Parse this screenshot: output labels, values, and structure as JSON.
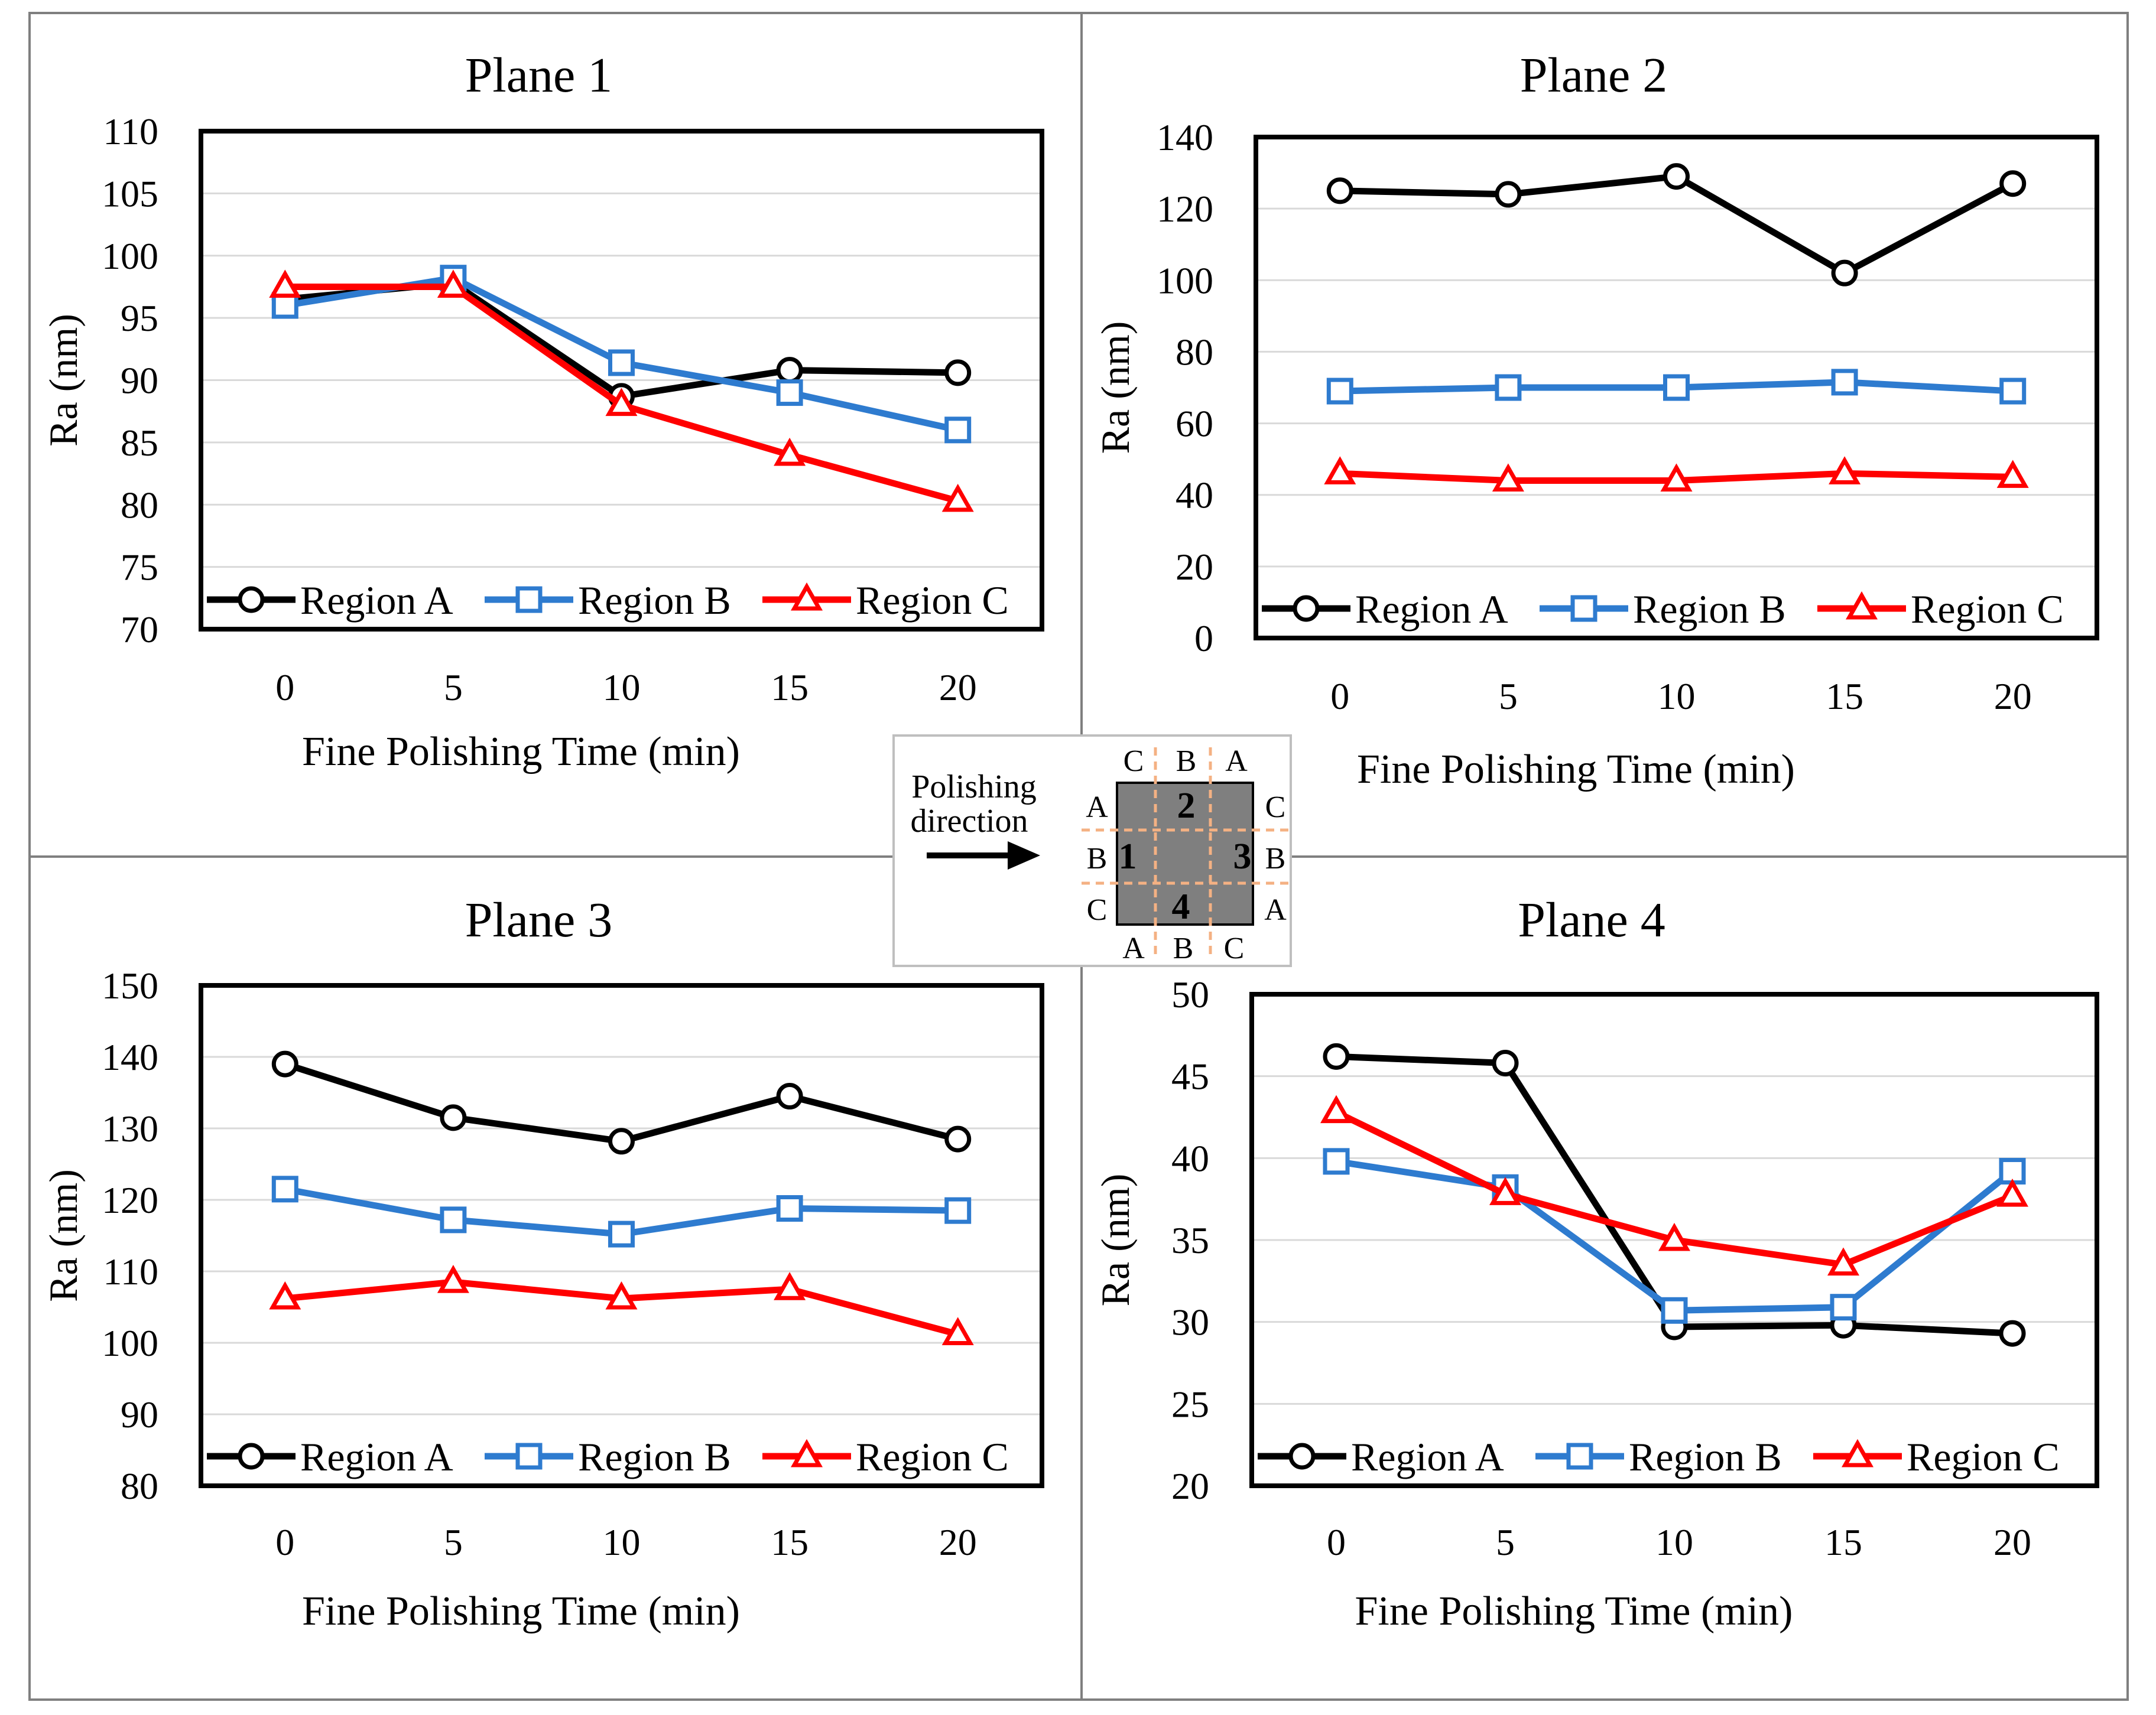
{
  "colors": {
    "region_a": "#000000",
    "region_b": "#2e7bcf",
    "region_c": "#ff0000",
    "grid": "#d9d9d9",
    "panel_border": "#7f7f7f",
    "sample_fill": "#7f7f7f",
    "sample_number": "#ffc000",
    "sample_dash": "#f4b183"
  },
  "chart_data": [
    {
      "type": "line",
      "title": "Plane 1",
      "xlabel": "Fine Polishing Time (min)",
      "ylabel": "Ra (nm)",
      "categories": [
        "0",
        "5",
        "10",
        "15",
        "20"
      ],
      "ylim": [
        70,
        110
      ],
      "yticks": [
        70,
        75,
        80,
        85,
        90,
        95,
        100,
        105,
        110
      ],
      "legend_position": "bottom-inside",
      "series": [
        {
          "name": "Region A",
          "marker": "circle",
          "values": [
            96.5,
            97.8,
            88.7,
            90.8,
            90.6
          ]
        },
        {
          "name": "Region B",
          "marker": "square",
          "values": [
            96.0,
            98.2,
            91.4,
            89.0,
            86.0
          ]
        },
        {
          "name": "Region C",
          "marker": "triangle",
          "values": [
            97.5,
            97.5,
            88.0,
            84.0,
            80.3
          ]
        }
      ]
    },
    {
      "type": "line",
      "title": "Plane 2",
      "xlabel": "Fine Polishing Time (min)",
      "ylabel": "Ra (nm)",
      "categories": [
        "0",
        "5",
        "10",
        "15",
        "20"
      ],
      "ylim": [
        0,
        140
      ],
      "yticks": [
        0,
        20,
        40,
        60,
        80,
        100,
        120,
        140
      ],
      "legend_position": "bottom-inside",
      "series": [
        {
          "name": "Region A",
          "marker": "circle",
          "values": [
            125,
            124,
            129,
            102,
            127
          ]
        },
        {
          "name": "Region B",
          "marker": "square",
          "values": [
            69,
            70,
            70,
            71.5,
            69
          ]
        },
        {
          "name": "Region C",
          "marker": "triangle",
          "values": [
            46,
            44,
            44,
            46,
            45
          ]
        }
      ]
    },
    {
      "type": "line",
      "title": "Plane 3",
      "xlabel": "Fine Polishing Time (min)",
      "ylabel": "Ra (nm)",
      "categories": [
        "0",
        "5",
        "10",
        "15",
        "20"
      ],
      "ylim": [
        80,
        150
      ],
      "yticks": [
        80,
        90,
        100,
        110,
        120,
        130,
        140,
        150
      ],
      "legend_position": "bottom-inside",
      "series": [
        {
          "name": "Region A",
          "marker": "circle",
          "values": [
            139,
            131.5,
            128.2,
            134.5,
            128.5
          ]
        },
        {
          "name": "Region B",
          "marker": "square",
          "values": [
            121.5,
            117.2,
            115.2,
            118.8,
            118.5
          ]
        },
        {
          "name": "Region C",
          "marker": "triangle",
          "values": [
            106.2,
            108.5,
            106.2,
            107.5,
            101.2
          ]
        }
      ]
    },
    {
      "type": "line",
      "title": "Plane 4",
      "xlabel": "Fine Polishing Time (min)",
      "ylabel": "Ra (nm)",
      "categories": [
        "0",
        "5",
        "10",
        "15",
        "20"
      ],
      "ylim": [
        20,
        50
      ],
      "yticks": [
        20,
        25,
        30,
        35,
        40,
        45,
        50
      ],
      "legend_position": "bottom-inside",
      "series": [
        {
          "name": "Region A",
          "marker": "circle",
          "values": [
            46.2,
            45.8,
            29.7,
            29.8,
            29.3
          ]
        },
        {
          "name": "Region B",
          "marker": "square",
          "values": [
            39.8,
            38.2,
            30.7,
            30.9,
            39.2
          ]
        },
        {
          "name": "Region C",
          "marker": "triangle",
          "values": [
            42.8,
            37.8,
            35.0,
            33.5,
            37.7
          ]
        }
      ]
    }
  ],
  "inset": {
    "direction_line1": "Polishing",
    "direction_line2": "direction",
    "top_labels": [
      "C",
      "B",
      "A"
    ],
    "bottom_labels": [
      "A",
      "B",
      "C"
    ],
    "left_labels": [
      "A",
      "B",
      "C"
    ],
    "right_labels": [
      "C",
      "B",
      "A"
    ],
    "plane_numbers": [
      "1",
      "2",
      "3",
      "4"
    ]
  }
}
